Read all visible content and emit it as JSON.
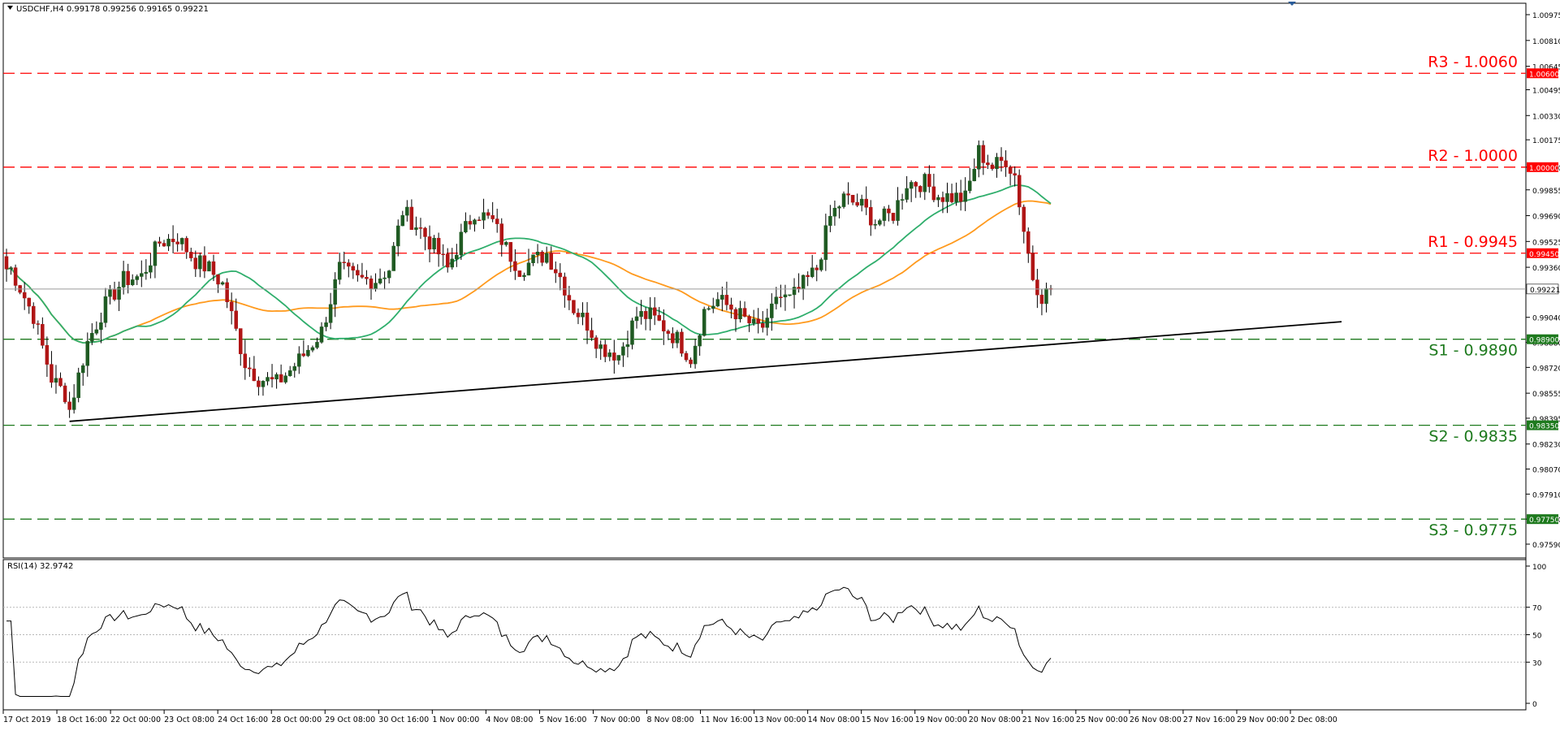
{
  "window": {
    "symbol_info": "USDCHF,H4  0.99178 0.99256 0.99165 0.99221",
    "indicator_info": "RSI(14) 32.9742"
  },
  "colors": {
    "background": "#ffffff",
    "bull_candle": "#1f5a22",
    "bear_candle": "#b01515",
    "wick": "#000000",
    "ma_fast": "#2fae6c",
    "ma_slow": "#ff9a1e",
    "resistance": "#ff0000",
    "support": "#1e7a1e",
    "trendline": "#000000",
    "rsi_line": "#000000",
    "grid_dotted": "#b8b8b8"
  },
  "chart_data": [
    {
      "type": "candlestick",
      "timeframe": "H4",
      "y_axis": {
        "ylim": [
          0.9757,
          1.01055
        ],
        "tick_labels": [
          "1.00975",
          "1.00810",
          "1.00645",
          "1.00495",
          "1.00330",
          "1.00175",
          "1.00000",
          "0.99855",
          "0.99690",
          "0.99525",
          "0.99360",
          "0.99221",
          "0.99040",
          "0.98880",
          "0.98720",
          "0.98555",
          "0.98395",
          "0.98230",
          "0.98070",
          "0.97910",
          "0.97750",
          "0.97590"
        ],
        "current_price_label": "0.99221",
        "current_price": 0.99221
      },
      "x_axis": {
        "tick_labels": [
          "17 Oct 2019",
          "18 Oct 16:00",
          "22 Oct 00:00",
          "23 Oct 08:00",
          "24 Oct 16:00",
          "28 Oct 00:00",
          "29 Oct 08:00",
          "30 Oct 16:00",
          "1 Nov 00:00",
          "4 Nov 08:00",
          "5 Nov 16:00",
          "7 Nov 00:00",
          "8 Nov 08:00",
          "11 Nov 16:00",
          "13 Nov 00:00",
          "14 Nov 08:00",
          "15 Nov 16:00",
          "19 Nov 00:00",
          "20 Nov 08:00",
          "21 Nov 16:00",
          "25 Nov 00:00",
          "26 Nov 08:00",
          "27 Nov 16:00",
          "29 Nov 00:00",
          "2 Dec 08:00"
        ]
      },
      "ohlc_approx_path": [
        [
          1,
          0.9935
        ],
        [
          6,
          0.9905
        ],
        [
          10,
          0.9865
        ],
        [
          13,
          0.9855
        ],
        [
          14,
          0.9845
        ],
        [
          18,
          0.9888
        ],
        [
          22,
          0.9912
        ],
        [
          26,
          0.9928
        ],
        [
          30,
          0.993
        ],
        [
          34,
          0.9952
        ],
        [
          38,
          0.9955
        ],
        [
          42,
          0.994
        ],
        [
          45,
          0.9935
        ],
        [
          48,
          0.9925
        ],
        [
          50,
          0.9905
        ],
        [
          53,
          0.9875
        ],
        [
          56,
          0.9865
        ],
        [
          60,
          0.9862
        ],
        [
          63,
          0.987
        ],
        [
          66,
          0.988
        ],
        [
          70,
          0.9895
        ],
        [
          74,
          0.9935
        ],
        [
          78,
          0.9928
        ],
        [
          82,
          0.9928
        ],
        [
          85,
          0.9935
        ],
        [
          88,
          0.9972
        ],
        [
          92,
          0.996
        ],
        [
          96,
          0.9945
        ],
        [
          98,
          0.9935
        ],
        [
          101,
          0.9955
        ],
        [
          104,
          0.9972
        ],
        [
          108,
          0.9965
        ],
        [
          111,
          0.9948
        ],
        [
          114,
          0.9935
        ],
        [
          117,
          0.994
        ],
        [
          120,
          0.9945
        ],
        [
          123,
          0.993
        ],
        [
          126,
          0.991
        ],
        [
          129,
          0.99
        ],
        [
          132,
          0.9885
        ],
        [
          136,
          0.988
        ],
        [
          140,
          0.9905
        ],
        [
          143,
          0.9905
        ],
        [
          146,
          0.9898
        ],
        [
          149,
          0.989
        ],
        [
          152,
          0.9878
        ],
        [
          155,
          0.9908
        ],
        [
          158,
          0.9915
        ],
        [
          161,
          0.991
        ],
        [
          163,
          0.9905
        ],
        [
          166,
          0.9898
        ],
        [
          169,
          0.9898
        ],
        [
          171,
          0.9918
        ],
        [
          174,
          0.9915
        ],
        [
          177,
          0.9925
        ],
        [
          180,
          0.9935
        ],
        [
          183,
          0.9968
        ],
        [
          186,
          0.998
        ],
        [
          190,
          0.9975
        ],
        [
          193,
          0.9965
        ],
        [
          197,
          0.997
        ],
        [
          200,
          0.999
        ],
        [
          204,
          0.999
        ],
        [
          207,
          0.9982
        ],
        [
          210,
          0.9981
        ],
        [
          213,
          0.998
        ],
        [
          216,
          1.001
        ],
        [
          219,
          1.0
        ],
        [
          222,
          1.0005
        ],
        [
          224,
          0.9995
        ],
        [
          226,
          0.996
        ],
        [
          228,
          0.993
        ],
        [
          230,
          0.9918
        ],
        [
          232,
          0.9921
        ]
      ]
    },
    {
      "type": "line",
      "name": "RSI(14)",
      "ylim": [
        0,
        100
      ],
      "tick_labels": [
        "100",
        "70",
        "50",
        "30",
        "0"
      ],
      "reference_levels": [
        70,
        50,
        30
      ],
      "current_value": 32.9742
    }
  ],
  "levels": {
    "resistance": [
      {
        "label": "R3 - 1.0060",
        "price": 1.006,
        "tag": "1.00600"
      },
      {
        "label": "R2 - 1.0000",
        "price": 1.0,
        "tag": "1.00000"
      },
      {
        "label": "R1 - 0.9945",
        "price": 0.9945,
        "tag": "0.99450"
      }
    ],
    "support": [
      {
        "label": "S1 - 0.9890",
        "price": 0.989,
        "tag": "0.98900"
      },
      {
        "label": "S2 - 0.9835",
        "price": 0.9835,
        "tag": "0.98350"
      },
      {
        "label": "S3 - 0.9775",
        "price": 0.9775,
        "tag": "0.97750"
      }
    ]
  }
}
